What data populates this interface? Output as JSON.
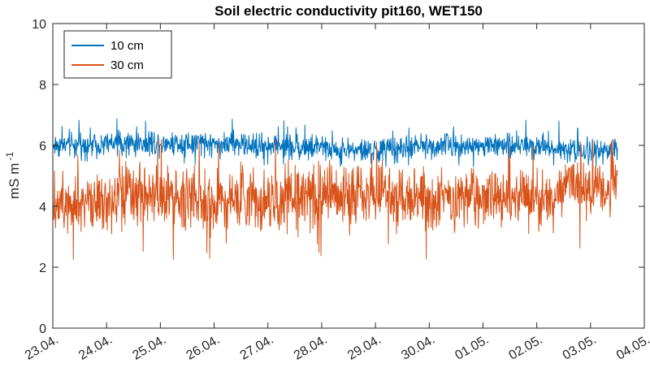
{
  "chart_data": {
    "type": "line",
    "title": "Soil electric conductivity pit160, WET150",
    "xlabel": "",
    "ylabel": "mS m -1",
    "ylabel_main": "mS m",
    "ylabel_exp": "-1",
    "ylim": [
      0,
      10
    ],
    "yticks": [
      0,
      2,
      4,
      6,
      8,
      10
    ],
    "xticks": [
      "23.04.",
      "24.04.",
      "25.04.",
      "26.04.",
      "27.04.",
      "28.04.",
      "29.04.",
      "30.04.",
      "01.05.",
      "02.05.",
      "03.05.",
      "04.05."
    ],
    "x_range_days": [
      0,
      11
    ],
    "grid": false,
    "legend_position": "top-left",
    "series": [
      {
        "name": "10 cm",
        "color": "#0072BD",
        "x_start": "23.04.",
        "x_end": "03.05.",
        "typical_min": 5.5,
        "typical_max": 6.5,
        "peak_max": 6.9,
        "level_profile": [
          {
            "x": "23.04.",
            "y": 6.0
          },
          {
            "x": "25.04.",
            "y": 6.1
          },
          {
            "x": "27.04.",
            "y": 6.0
          },
          {
            "x": "29.04.",
            "y": 5.8
          },
          {
            "x": "30.04.",
            "y": 6.0
          },
          {
            "x": "02.05.",
            "y": 6.0
          },
          {
            "x": "03.05.",
            "y": 5.8
          }
        ]
      },
      {
        "name": "30 cm",
        "color": "#D95319",
        "x_start": "23.04.",
        "x_end": "03.05.",
        "typical_min": 3.0,
        "typical_max": 5.6,
        "peak_min": 2.2,
        "peak_max": 6.2,
        "level_profile": [
          {
            "x": "23.04.",
            "y": 4.2
          },
          {
            "x": "25.04.",
            "y": 4.3
          },
          {
            "x": "27.04.",
            "y": 4.2
          },
          {
            "x": "29.04.",
            "y": 4.5
          },
          {
            "x": "30.04.",
            "y": 4.2
          },
          {
            "x": "02.05.",
            "y": 4.3
          },
          {
            "x": "03.05.",
            "y": 4.7
          }
        ]
      }
    ]
  }
}
